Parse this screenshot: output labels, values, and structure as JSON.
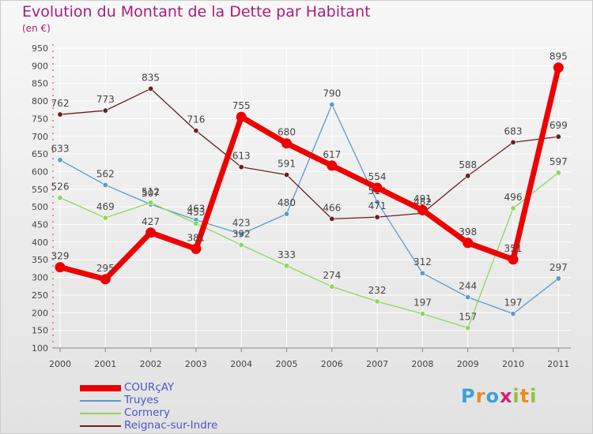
{
  "header": {
    "title": "Evolution du Montant de la Dette par Habitant",
    "subtitle": "(en €)"
  },
  "colors": {
    "title": "#a61e7c",
    "legend_text": "#4a55c8",
    "axis": "#444444",
    "value_label": "#444444"
  },
  "brand": {
    "letters": [
      {
        "char": "P",
        "color": "#3aa2d8"
      },
      {
        "char": "r",
        "color": "#f08a1c"
      },
      {
        "char": "o",
        "color": "#3aa2d8"
      },
      {
        "char": "x",
        "color": "#d4207a"
      },
      {
        "char": "i",
        "color": "#8bc43f"
      },
      {
        "char": "t",
        "color": "#f08a1c"
      },
      {
        "char": "i",
        "color": "#8bc43f"
      }
    ]
  },
  "chart_data": {
    "type": "line",
    "title": "Evolution du Montant de la Dette par Habitant",
    "subtitle": "(en €)",
    "xlabel": "",
    "ylabel": "",
    "categories": [
      "2000",
      "2001",
      "2002",
      "2003",
      "2004",
      "2005",
      "2006",
      "2007",
      "2008",
      "2009",
      "2010",
      "2011"
    ],
    "ylim": [
      100,
      950
    ],
    "yticks": [
      100,
      150,
      200,
      250,
      300,
      350,
      400,
      450,
      500,
      550,
      600,
      650,
      700,
      750,
      800,
      850,
      900,
      950
    ],
    "grid": true,
    "legend_position": "bottom-left",
    "series": [
      {
        "name": "Truyes",
        "color": "#5b9ad0",
        "values": [
          633,
          562,
          507,
          463,
          423,
          480,
          790,
          514,
          312,
          244,
          197,
          297
        ]
      },
      {
        "name": "Cormery",
        "color": "#8fd65a",
        "values": [
          526,
          469,
          512,
          453,
          392,
          333,
          274,
          232,
          197,
          157,
          496,
          597
        ]
      },
      {
        "name": "Reignac-sur-Indre",
        "color": "#6b1f1f",
        "values": [
          762,
          773,
          835,
          716,
          613,
          591,
          466,
          471,
          482,
          588,
          683,
          699
        ]
      },
      {
        "name": "COURçAY",
        "color": "#ee0000",
        "values": [
          329,
          295,
          427,
          381,
          755,
          680,
          617,
          554,
          491,
          398,
          351,
          895
        ]
      }
    ]
  }
}
